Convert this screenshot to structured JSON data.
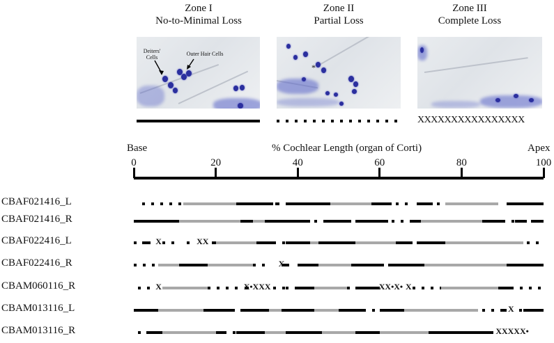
{
  "zones": [
    {
      "title": "Zone I",
      "subtitle": "No-to-Minimal Loss",
      "legend": "solid"
    },
    {
      "title": "Zone II",
      "subtitle": "Partial Loss",
      "legend": "dotted"
    },
    {
      "title": "Zone III",
      "subtitle": "Complete Loss",
      "legend": "xxxxx",
      "legend_text": "XXXXXXXXXXXXXXXX"
    }
  ],
  "annotations": {
    "deiters": "Deiters' Cells",
    "ohc": "Outer Hair Cells",
    "asterisk": "*"
  },
  "axis": {
    "left_label": "Base",
    "title": "% Cochlear Length (organ of Corti)",
    "right_label": "Apex",
    "ticks": [
      "0",
      "20",
      "40",
      "60",
      "80",
      "100"
    ]
  },
  "colors": {
    "zone1": "#000000",
    "zone2": "#a8a8a8",
    "cell": "#2b2f9e"
  },
  "chart_data": {
    "type": "table",
    "x_range": [
      0,
      100
    ],
    "samples": [
      {
        "label": "CBAF021416_L",
        "segments": [
          {
            "z": 2,
            "a": 2,
            "b": 11
          },
          {
            "z": 1,
            "a": 12,
            "b": 25
          },
          {
            "z": 0,
            "a": 25,
            "b": 34
          },
          {
            "z": 0,
            "a": 34.5,
            "b": 35.5
          },
          {
            "z": 0,
            "a": 37,
            "b": 48
          },
          {
            "z": 1,
            "a": 48,
            "b": 58
          },
          {
            "z": 0,
            "a": 58,
            "b": 63
          },
          {
            "z": 2,
            "a": 64,
            "b": 67
          },
          {
            "z": 0,
            "a": 69,
            "b": 73
          },
          {
            "z": 2,
            "a": 74,
            "b": 76
          },
          {
            "z": 1,
            "a": 76,
            "b": 89
          },
          {
            "z": 0,
            "a": 91,
            "b": 100
          }
        ],
        "x": []
      },
      {
        "label": "CBAF021416_R",
        "segments": [
          {
            "z": 0,
            "a": 0,
            "b": 11
          },
          {
            "z": 1,
            "a": 11,
            "b": 26
          },
          {
            "z": 0,
            "a": 26,
            "b": 29
          },
          {
            "z": 1,
            "a": 29,
            "b": 32
          },
          {
            "z": 0,
            "a": 32,
            "b": 43
          },
          {
            "z": 2,
            "a": 44,
            "b": 47
          },
          {
            "z": 0,
            "a": 47,
            "b": 53
          },
          {
            "z": 0,
            "a": 54,
            "b": 62
          },
          {
            "z": 2,
            "a": 63,
            "b": 68
          },
          {
            "z": 0,
            "a": 68,
            "b": 70
          },
          {
            "z": 1,
            "a": 70,
            "b": 85
          },
          {
            "z": 0,
            "a": 85,
            "b": 90
          },
          {
            "z": 2,
            "a": 90,
            "b": 93
          },
          {
            "z": 0,
            "a": 93,
            "b": 96
          },
          {
            "z": 0,
            "a": 97,
            "b": 100
          }
        ],
        "x": []
      },
      {
        "label": "CBAF022416_L",
        "segments": [
          {
            "z": 2,
            "a": 0,
            "b": 1
          },
          {
            "z": 0,
            "a": 2,
            "b": 4
          },
          {
            "z": 2,
            "a": 7,
            "b": 11
          },
          {
            "z": 2,
            "a": 13,
            "b": 15
          },
          {
            "z": 0,
            "a": 19,
            "b": 20
          },
          {
            "z": 1,
            "a": 20,
            "b": 30
          },
          {
            "z": 0,
            "a": 30,
            "b": 34
          },
          {
            "z": 2,
            "a": 34,
            "b": 37
          },
          {
            "z": 0,
            "a": 37,
            "b": 43
          },
          {
            "z": 1,
            "a": 43,
            "b": 45
          },
          {
            "z": 0,
            "a": 45,
            "b": 54
          },
          {
            "z": 1,
            "a": 54,
            "b": 64
          },
          {
            "z": 0,
            "a": 64,
            "b": 68
          },
          {
            "z": 0,
            "a": 69,
            "b": 76
          },
          {
            "z": 1,
            "a": 76,
            "b": 95
          },
          {
            "z": 2,
            "a": 96,
            "b": 100
          }
        ],
        "x": [
          {
            "at": 6,
            "text": "X"
          },
          {
            "at": 16,
            "text": "XX"
          }
        ]
      },
      {
        "label": "CBAF022416_R",
        "segments": [
          {
            "z": 2,
            "a": 0,
            "b": 6
          },
          {
            "z": 1,
            "a": 6,
            "b": 11
          },
          {
            "z": 0,
            "a": 11,
            "b": 18
          },
          {
            "z": 1,
            "a": 18,
            "b": 29
          },
          {
            "z": 2,
            "a": 29,
            "b": 33
          },
          {
            "z": 0,
            "a": 36,
            "b": 38
          },
          {
            "z": 0,
            "a": 40,
            "b": 45
          },
          {
            "z": 1,
            "a": 45,
            "b": 53
          },
          {
            "z": 0,
            "a": 53,
            "b": 61
          },
          {
            "z": 0,
            "a": 62,
            "b": 71
          },
          {
            "z": 1,
            "a": 71,
            "b": 91
          },
          {
            "z": 0,
            "a": 91,
            "b": 100
          }
        ],
        "x": [
          {
            "at": 36,
            "text": "X"
          }
        ]
      },
      {
        "label": "CBAM060116_R",
        "segments": [
          {
            "z": 2,
            "a": 1,
            "b": 5
          },
          {
            "z": 1,
            "a": 7,
            "b": 18
          },
          {
            "z": 2,
            "a": 18,
            "b": 26
          },
          {
            "z": 0,
            "a": 27,
            "b": 28
          },
          {
            "z": 2,
            "a": 34,
            "b": 37
          },
          {
            "z": 2,
            "a": 37,
            "b": 40
          },
          {
            "z": 0,
            "a": 40,
            "b": 44
          },
          {
            "z": 1,
            "a": 44,
            "b": 52
          },
          {
            "z": 2,
            "a": 52,
            "b": 54
          },
          {
            "z": 0,
            "a": 54,
            "b": 60
          },
          {
            "z": 2,
            "a": 68,
            "b": 75
          },
          {
            "z": 1,
            "a": 75,
            "b": 89
          },
          {
            "z": 0,
            "a": 89,
            "b": 92
          },
          {
            "z": 2,
            "a": 92,
            "b": 100
          }
        ],
        "x": [
          {
            "at": 6,
            "text": "X"
          },
          {
            "at": 27.5,
            "text": "X•XXX"
          },
          {
            "at": 60.5,
            "text": "XX•X•"
          },
          {
            "at": 67,
            "text": "X"
          }
        ]
      },
      {
        "label": "CBAM013116_L",
        "segments": [
          {
            "z": 0,
            "a": 0,
            "b": 6
          },
          {
            "z": 1,
            "a": 6,
            "b": 17
          },
          {
            "z": 0,
            "a": 17,
            "b": 24
          },
          {
            "z": 2,
            "a": 24,
            "b": 26
          },
          {
            "z": 0,
            "a": 26,
            "b": 33
          },
          {
            "z": 1,
            "a": 33,
            "b": 36
          },
          {
            "z": 0,
            "a": 36,
            "b": 44
          },
          {
            "z": 1,
            "a": 44,
            "b": 50
          },
          {
            "z": 0,
            "a": 50,
            "b": 56
          },
          {
            "z": 2,
            "a": 56,
            "b": 60
          },
          {
            "z": 0,
            "a": 60,
            "b": 66
          },
          {
            "z": 1,
            "a": 66,
            "b": 84
          },
          {
            "z": 2,
            "a": 85,
            "b": 90
          },
          {
            "z": 0,
            "a": 90,
            "b": 91
          },
          {
            "z": 2,
            "a": 94,
            "b": 95
          },
          {
            "z": 0,
            "a": 95,
            "b": 100
          }
        ],
        "x": [
          {
            "at": 92,
            "text": "X"
          }
        ]
      },
      {
        "label": "CBAM013116_R",
        "segments": [
          {
            "z": 2,
            "a": 1,
            "b": 2
          },
          {
            "z": 0,
            "a": 3,
            "b": 7
          },
          {
            "z": 1,
            "a": 7,
            "b": 20
          },
          {
            "z": 0,
            "a": 20,
            "b": 22
          },
          {
            "z": 2,
            "a": 22,
            "b": 25
          },
          {
            "z": 0,
            "a": 25,
            "b": 32
          },
          {
            "z": 1,
            "a": 32,
            "b": 37
          },
          {
            "z": 0,
            "a": 37,
            "b": 46
          },
          {
            "z": 1,
            "a": 46,
            "b": 54
          },
          {
            "z": 0,
            "a": 54,
            "b": 60
          },
          {
            "z": 1,
            "a": 60,
            "b": 72
          },
          {
            "z": 0,
            "a": 72,
            "b": 87
          },
          {
            "z": 2,
            "a": 87,
            "b": 89
          }
        ],
        "x": [
          {
            "at": 89,
            "text": "XXXXX•"
          }
        ]
      }
    ]
  }
}
